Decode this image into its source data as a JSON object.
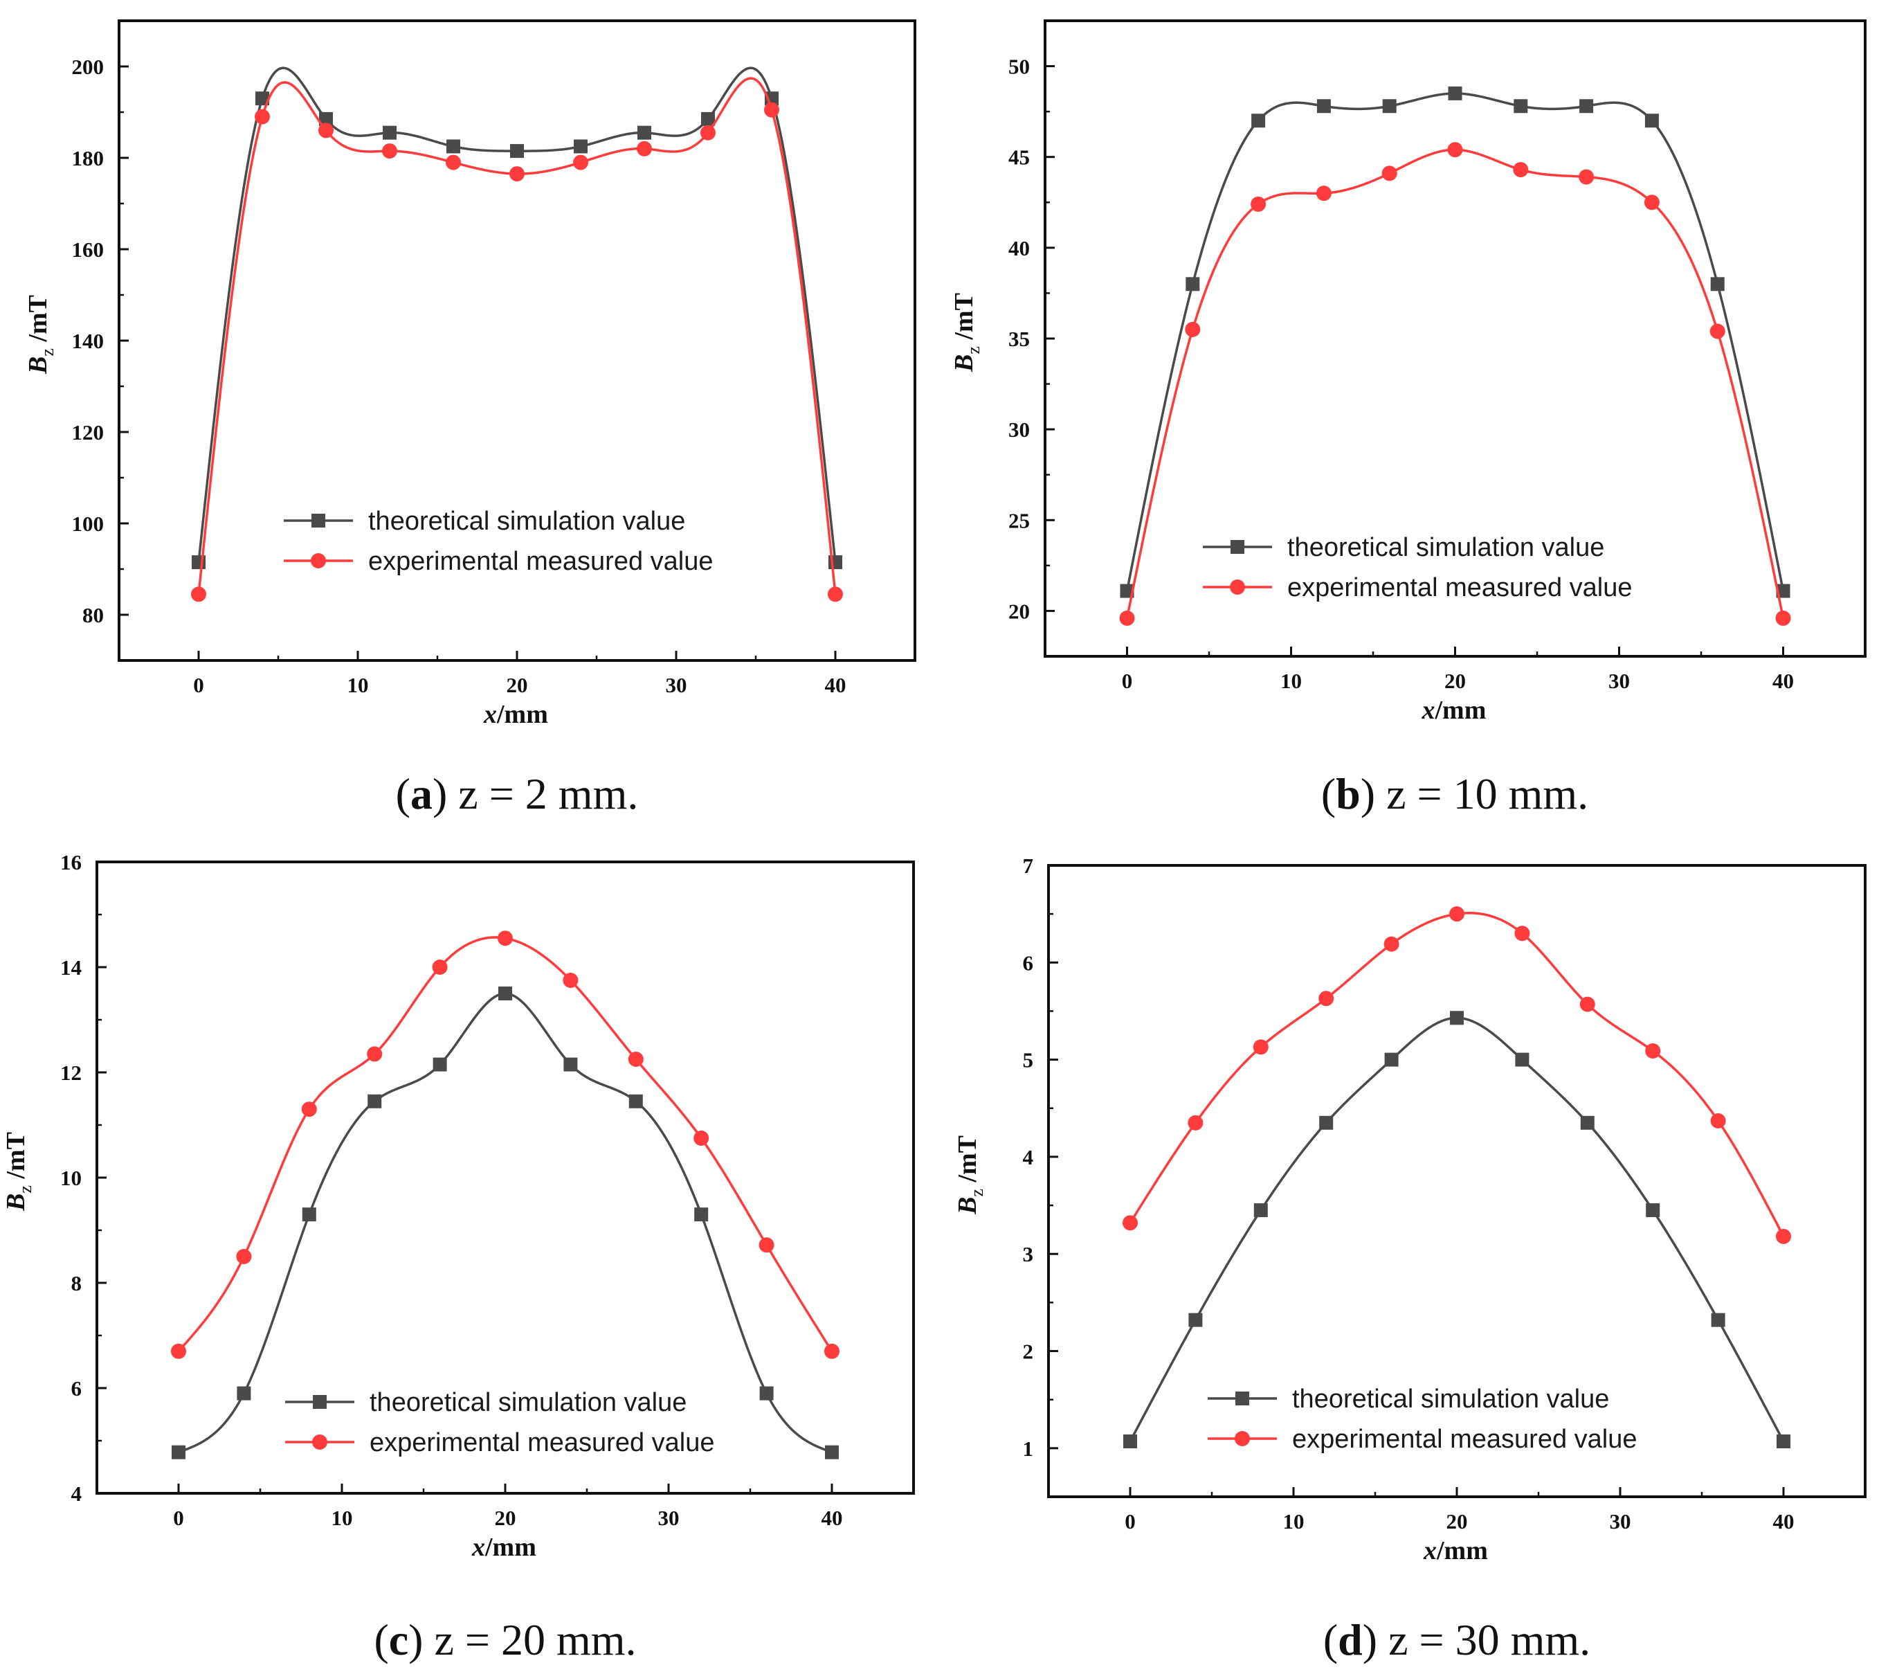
{
  "figure": {
    "panels": [
      {
        "caption_letter": "a",
        "caption_text": "z = 2 mm.",
        "chart_data": {
          "type": "line",
          "x": [
            0,
            4,
            8,
            12,
            16,
            20,
            24,
            28,
            32,
            36,
            40
          ],
          "series": [
            {
              "name": "theoretical simulation value",
              "color": "#4a4a4a",
              "marker": "square",
              "values": [
                91.5,
                193,
                188.5,
                185.5,
                182.5,
                181.5,
                182.5,
                185.5,
                188.5,
                193,
                91.5
              ]
            },
            {
              "name": "experimental measured value",
              "color": "#ff3b3b",
              "marker": "circle",
              "values": [
                84.5,
                189,
                186,
                181.5,
                179,
                176.5,
                179,
                182,
                185.5,
                190.5,
                84.5
              ]
            }
          ],
          "xlabel_italic": "x",
          "xlabel_unit": "/mm",
          "ylabel_italic": "B",
          "ylabel_sub": "z",
          "ylabel_unit": " /mT",
          "xlim": [
            -5,
            45
          ],
          "ylim": [
            70,
            210
          ],
          "xticks": [
            0,
            10,
            20,
            30,
            40
          ],
          "yticks": [
            80,
            100,
            120,
            140,
            160,
            180,
            200
          ],
          "legend_position": "center-bottom"
        }
      },
      {
        "caption_letter": "b",
        "caption_text": "z = 10 mm.",
        "chart_data": {
          "type": "line",
          "x": [
            0,
            4,
            8,
            12,
            16,
            20,
            24,
            28,
            32,
            36,
            40
          ],
          "series": [
            {
              "name": "theoretical simulation value",
              "color": "#4a4a4a",
              "marker": "square",
              "values": [
                21.1,
                38,
                47,
                47.8,
                47.8,
                48.5,
                47.8,
                47.8,
                47,
                38,
                21.1
              ]
            },
            {
              "name": "experimental measured value",
              "color": "#ff3b3b",
              "marker": "circle",
              "values": [
                19.6,
                35.5,
                42.4,
                43,
                44.1,
                45.4,
                44.3,
                43.9,
                42.5,
                35.4,
                19.6
              ]
            }
          ],
          "xlabel_italic": "x",
          "xlabel_unit": "/mm",
          "ylabel_italic": "B",
          "ylabel_sub": "z",
          "ylabel_unit": " /mT",
          "xlim": [
            -5,
            45
          ],
          "ylim": [
            17.5,
            52.5
          ],
          "xticks": [
            0,
            10,
            20,
            30,
            40
          ],
          "yticks": [
            20,
            25,
            30,
            35,
            40,
            45,
            50
          ],
          "legend_position": "center-bottom"
        }
      },
      {
        "caption_letter": "c",
        "caption_text": "z = 20 mm.",
        "chart_data": {
          "type": "line",
          "x": [
            0,
            4,
            8,
            12,
            16,
            20,
            24,
            28,
            32,
            36,
            40
          ],
          "series": [
            {
              "name": "theoretical simulation value",
              "color": "#4a4a4a",
              "marker": "square",
              "values": [
                4.78,
                5.9,
                9.3,
                11.45,
                12.15,
                13.5,
                12.15,
                11.45,
                9.3,
                5.9,
                4.78
              ]
            },
            {
              "name": "experimental measured value",
              "color": "#ff3b3b",
              "marker": "circle",
              "values": [
                6.7,
                8.5,
                11.3,
                12.35,
                14.0,
                14.55,
                13.75,
                12.25,
                10.75,
                8.72,
                6.7
              ]
            }
          ],
          "xlabel_italic": "x",
          "xlabel_unit": "/mm",
          "ylabel_italic": "B",
          "ylabel_sub": "z",
          "ylabel_unit": " /mT",
          "xlim": [
            -5,
            45
          ],
          "ylim": [
            4,
            16
          ],
          "xticks": [
            0,
            10,
            20,
            30,
            40
          ],
          "yticks": [
            4,
            6,
            8,
            10,
            12,
            14,
            16
          ],
          "legend_position": "center-bottom"
        }
      },
      {
        "caption_letter": "d",
        "caption_text": "z = 30 mm.",
        "chart_data": {
          "type": "line",
          "x": [
            0,
            4,
            8,
            12,
            16,
            20,
            24,
            28,
            32,
            36,
            40
          ],
          "series": [
            {
              "name": "theoretical simulation value",
              "color": "#4a4a4a",
              "marker": "square",
              "values": [
                1.07,
                2.32,
                3.45,
                4.35,
                5.0,
                5.43,
                5.0,
                4.35,
                3.45,
                2.32,
                1.07
              ]
            },
            {
              "name": "experimental measured value",
              "color": "#ff3b3b",
              "marker": "circle",
              "values": [
                3.32,
                4.35,
                5.13,
                5.63,
                6.19,
                6.5,
                6.3,
                5.57,
                5.09,
                4.37,
                3.18
              ]
            }
          ],
          "xlabel_italic": "x",
          "xlabel_unit": "/mm",
          "ylabel_italic": "B",
          "ylabel_sub": "z",
          "ylabel_unit": " /mT",
          "xlim": [
            -5,
            45
          ],
          "ylim": [
            0.5,
            7
          ],
          "xticks": [
            0,
            10,
            20,
            30,
            40
          ],
          "yticks": [
            1,
            2,
            3,
            4,
            5,
            6,
            7
          ],
          "legend_position": "center-bottom"
        }
      }
    ]
  }
}
